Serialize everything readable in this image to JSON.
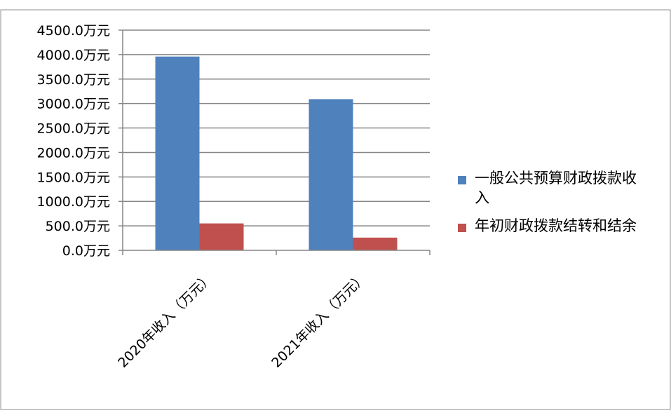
{
  "chart_data": {
    "type": "bar",
    "title": "",
    "xlabel": "",
    "ylabel": "",
    "categories": [
      "2020年收入（万元）",
      "2021年收入（万元）"
    ],
    "series": [
      {
        "name": "一般公共预算财政拨款收入",
        "values": [
          3960.0,
          3090.0
        ],
        "color": "#4F81BD"
      },
      {
        "name": "年初财政拨款结转和结余",
        "values": [
          550.0,
          260.0
        ],
        "color": "#C0504D"
      }
    ],
    "ylim": [
      0,
      4500
    ],
    "yticks": [
      "0.0万元",
      "500.0万元",
      "1000.0万元",
      "1500.0万元",
      "2000.0万元",
      "2500.0万元",
      "3000.0万元",
      "3500.0万元",
      "4000.0万元",
      "4500.0万元"
    ],
    "grid": true,
    "legend_position": "right"
  }
}
